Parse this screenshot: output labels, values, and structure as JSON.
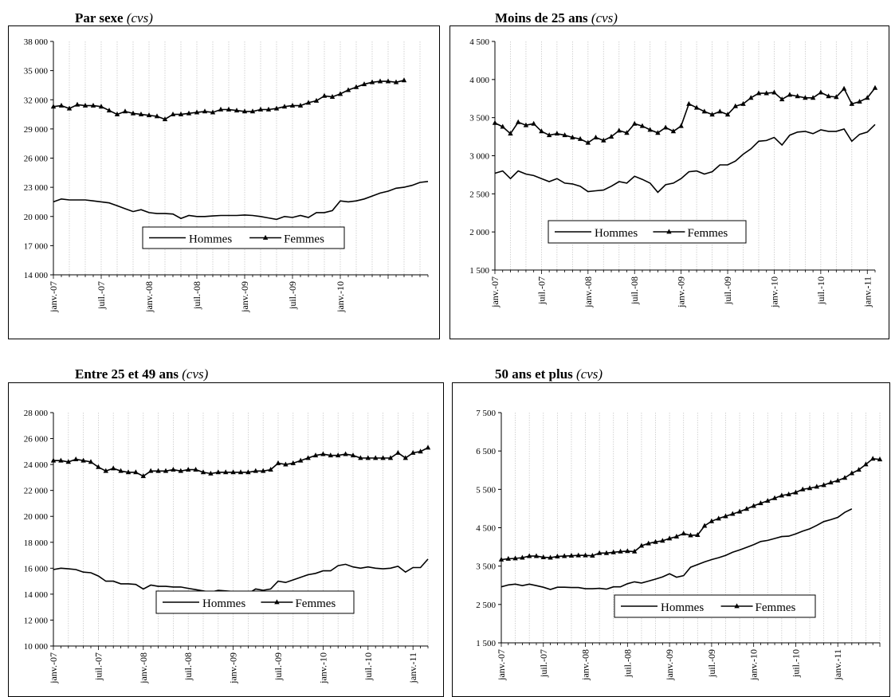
{
  "charts": [
    {
      "title": "Par sexe",
      "subtitle": "(cvs)",
      "legend_hommes": "Hommes",
      "legend_femmes": "Femmes"
    },
    {
      "title": "Moins de 25 ans",
      "subtitle": "(cvs)",
      "legend_hommes": "Hommes",
      "legend_femmes": "Femmes"
    },
    {
      "title": "Entre 25 et 49 ans",
      "subtitle": "(cvs)",
      "legend_hommes": "Hommes",
      "legend_femmes": "Femmes"
    },
    {
      "title": "50 ans et plus",
      "subtitle": "(cvs)",
      "legend_hommes": "Hommes",
      "legend_femmes": "Femmes"
    }
  ],
  "chart_data": [
    {
      "type": "line",
      "title": "Par sexe (cvs)",
      "x_ticks": [
        "janv.-07",
        "juil.-07",
        "janv.-08",
        "juil.-08",
        "janv.-09",
        "juil.-09",
        "janv.-10"
      ],
      "y_ticks": [
        "14 000",
        "17 000",
        "20 000",
        "23 000",
        "26 000",
        "29 000",
        "32 000",
        "35 000",
        "38 000"
      ],
      "ylim": [
        14000,
        38000
      ],
      "x_start": "janv.-07",
      "legend_position": "center",
      "grid": "vertical",
      "series": [
        {
          "name": "Hommes",
          "marker": "none",
          "values": [
            21500,
            21800,
            21700,
            21700,
            21700,
            21600,
            21500,
            21400,
            21100,
            20800,
            20500,
            20700,
            20400,
            20300,
            20300,
            20250,
            19800,
            20100,
            20000,
            20000,
            20050,
            20100,
            20100,
            20100,
            20150,
            20100,
            20000,
            19850,
            19700,
            20000,
            19900,
            20100,
            19900,
            20400,
            20400,
            20600,
            21600,
            21500,
            21600,
            21800,
            22100,
            22400,
            22600,
            22900,
            23000,
            23200,
            23500,
            23600
          ]
        },
        {
          "name": "Femmes",
          "marker": "triangle",
          "values": [
            31300,
            31400,
            31100,
            31500,
            31400,
            31400,
            31300,
            30900,
            30500,
            30800,
            30600,
            30500,
            30400,
            30300,
            30000,
            30500,
            30500,
            30600,
            30700,
            30800,
            30700,
            31000,
            31000,
            30900,
            30800,
            30800,
            31000,
            31000,
            31100,
            31300,
            31400,
            31400,
            31700,
            31900,
            32400,
            32300,
            32600,
            33000,
            33300,
            33600,
            33800,
            33900,
            33900,
            33800,
            34000
          ]
        }
      ]
    },
    {
      "type": "line",
      "title": "Moins de 25 ans (cvs)",
      "x_ticks": [
        "janv.-07",
        "juil.-07",
        "janv.-08",
        "juil.-08",
        "janv.-09",
        "juil.-09",
        "janv.-10",
        "juil.-10",
        "janv.-11"
      ],
      "y_ticks": [
        "1 500",
        "2 000",
        "2 500",
        "3 000",
        "3 500",
        "4 000",
        "4 500"
      ],
      "ylim": [
        1500,
        4500
      ],
      "x_start": "janv.-07",
      "legend_position": "bottom-center",
      "grid": "vertical",
      "series": [
        {
          "name": "Hommes",
          "marker": "none",
          "values": [
            2770,
            2800,
            2700,
            2800,
            2760,
            2740,
            2700,
            2660,
            2700,
            2640,
            2630,
            2600,
            2530,
            2540,
            2550,
            2600,
            2660,
            2640,
            2730,
            2690,
            2640,
            2520,
            2620,
            2640,
            2700,
            2790,
            2800,
            2760,
            2790,
            2880,
            2880,
            2930,
            3020,
            3090,
            3190,
            3200,
            3240,
            3140,
            3270,
            3310,
            3320,
            3290,
            3340,
            3320,
            3320,
            3350,
            3190,
            3280,
            3310,
            3410
          ]
        },
        {
          "name": "Femmes",
          "marker": "triangle",
          "values": [
            3430,
            3380,
            3290,
            3440,
            3400,
            3420,
            3320,
            3270,
            3290,
            3270,
            3240,
            3220,
            3170,
            3240,
            3200,
            3250,
            3330,
            3300,
            3420,
            3390,
            3340,
            3300,
            3370,
            3320,
            3390,
            3680,
            3630,
            3580,
            3540,
            3580,
            3540,
            3650,
            3680,
            3760,
            3820,
            3820,
            3830,
            3740,
            3800,
            3780,
            3760,
            3760,
            3830,
            3780,
            3770,
            3880,
            3680,
            3710,
            3760,
            3890
          ]
        }
      ]
    },
    {
      "type": "line",
      "title": "Entre 25 et 49 ans (cvs)",
      "x_ticks": [
        "janv.-07",
        "juil.-07",
        "janv.-08",
        "juil.-08",
        "janv.-09",
        "juil.-09",
        "janv.-10",
        "juil.-10",
        "janv.-11"
      ],
      "y_ticks": [
        "10 000",
        "12 000",
        "14 000",
        "16 000",
        "18 000",
        "20 000",
        "22 000",
        "24 000",
        "26 000",
        "28 000"
      ],
      "ylim": [
        10000,
        28000
      ],
      "x_start": "janv.-07",
      "legend_position": "bottom-center",
      "grid": "vertical",
      "series": [
        {
          "name": "Hommes",
          "marker": "none",
          "values": [
            15900,
            16000,
            15950,
            15900,
            15700,
            15650,
            15400,
            15000,
            15000,
            14800,
            14800,
            14750,
            14400,
            14700,
            14600,
            14600,
            14550,
            14550,
            14450,
            14350,
            14250,
            14150,
            14300,
            14250,
            14200,
            14100,
            14050,
            14400,
            14300,
            14400,
            15000,
            14900,
            15100,
            15300,
            15500,
            15600,
            15800,
            15800,
            16200,
            16300,
            16100,
            16000,
            16100,
            16000,
            15950,
            16000,
            16150,
            15700,
            16050,
            16050,
            16700
          ]
        },
        {
          "name": "Femmes",
          "marker": "triangle",
          "values": [
            24300,
            24300,
            24200,
            24400,
            24300,
            24200,
            23800,
            23500,
            23700,
            23500,
            23400,
            23400,
            23100,
            23500,
            23500,
            23500,
            23600,
            23500,
            23600,
            23600,
            23400,
            23300,
            23400,
            23400,
            23400,
            23400,
            23400,
            23500,
            23500,
            23600,
            24100,
            24000,
            24100,
            24300,
            24500,
            24700,
            24800,
            24700,
            24700,
            24800,
            24700,
            24500,
            24500,
            24500,
            24500,
            24500,
            24900,
            24500,
            24900,
            25000,
            25300
          ]
        }
      ]
    },
    {
      "type": "line",
      "title": "50 ans et plus (cvs)",
      "x_ticks": [
        "janv.-07",
        "juil.-07",
        "janv.-08",
        "juil.-08",
        "janv.-09",
        "juil.-09",
        "janv.-10",
        "juil.-10",
        "janv.-11"
      ],
      "y_ticks": [
        "1 500",
        "2 500",
        "3 500",
        "4 500",
        "5 500",
        "6 500",
        "7 500"
      ],
      "ylim": [
        1500,
        7500
      ],
      "x_start": "janv.-07",
      "legend_position": "bottom-center",
      "grid": "vertical",
      "series": [
        {
          "name": "Hommes",
          "marker": "none",
          "values": [
            2960,
            3010,
            3030,
            2990,
            3030,
            2990,
            2950,
            2890,
            2950,
            2950,
            2940,
            2940,
            2910,
            2910,
            2920,
            2900,
            2960,
            2960,
            3040,
            3090,
            3060,
            3110,
            3160,
            3220,
            3300,
            3210,
            3250,
            3470,
            3540,
            3610,
            3670,
            3720,
            3780,
            3860,
            3920,
            3990,
            4060,
            4140,
            4170,
            4220,
            4270,
            4280,
            4340,
            4410,
            4470,
            4560,
            4660,
            4710,
            4770,
            4900,
            4990
          ]
        },
        {
          "name": "Femmes",
          "marker": "triangle",
          "values": [
            3670,
            3690,
            3700,
            3720,
            3760,
            3760,
            3730,
            3720,
            3750,
            3760,
            3770,
            3780,
            3780,
            3770,
            3840,
            3840,
            3860,
            3880,
            3890,
            3880,
            4030,
            4090,
            4130,
            4160,
            4220,
            4270,
            4350,
            4300,
            4310,
            4550,
            4670,
            4740,
            4800,
            4860,
            4920,
            4990,
            5070,
            5140,
            5200,
            5270,
            5340,
            5370,
            5420,
            5500,
            5530,
            5570,
            5610,
            5680,
            5730,
            5800,
            5920,
            6010,
            6150,
            6300,
            6280
          ]
        }
      ]
    }
  ]
}
